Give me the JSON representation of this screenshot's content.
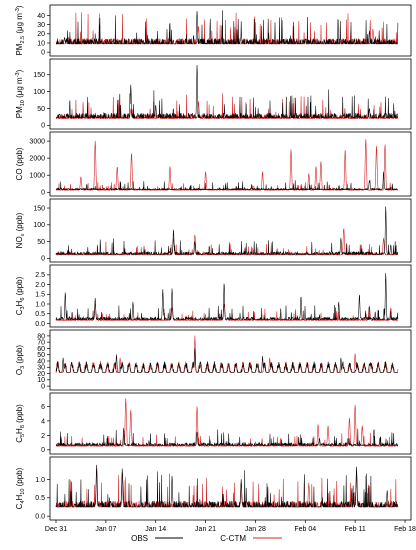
{
  "chart_data": {
    "type": "line",
    "x_axis": {
      "start": "2017-12-31",
      "end": "2018-02-18",
      "ticks": [
        "Dec 31",
        "Jan 07",
        "Jan 14",
        "Jan 21",
        "Jan 28",
        "Feb 04",
        "Feb 11",
        "Feb 18"
      ]
    },
    "series_names": [
      "OBS",
      "C-CTM"
    ],
    "colors": {
      "OBS": "#000000",
      "C-CTM": "#d62728"
    },
    "legend_position": "bottom-center",
    "panels": [
      {
        "id": "pm25",
        "ylabel": [
          "PM",
          "2.5",
          " (μg m",
          "-3",
          ")"
        ],
        "yticks": [
          0,
          10,
          20,
          30,
          40
        ],
        "ylim": [
          -2,
          47
        ],
        "obs_base": 9,
        "ctm_base": 9,
        "obs_peaks": [
          [
            1.2,
            16
          ],
          [
            19.8,
            45
          ],
          [
            26,
            19
          ],
          [
            35,
            13
          ],
          [
            44,
            23
          ]
        ],
        "ctm_peaks": [
          [
            1.5,
            15
          ],
          [
            20,
            28
          ],
          [
            44.5,
            25
          ]
        ]
      },
      {
        "id": "pm10",
        "ylabel": [
          "PM",
          "10",
          " (μg m",
          "-3",
          ")"
        ],
        "yticks": [
          0,
          50,
          100,
          150
        ],
        "ylim": [
          -5,
          185
        ],
        "obs_base": 22,
        "ctm_base": 20,
        "obs_peaks": [
          [
            10.5,
            120
          ],
          [
            19.8,
            180
          ],
          [
            14,
            60
          ],
          [
            44,
            50
          ]
        ],
        "ctm_peaks": [
          [
            20,
            70
          ],
          [
            10.5,
            45
          ]
        ]
      },
      {
        "id": "co",
        "ylabel": [
          "CO (ppb)"
        ],
        "yticks": [
          0,
          1000,
          2000,
          3000
        ],
        "ylim": [
          -100,
          3300
        ],
        "obs_base": 150,
        "ctm_base": 120,
        "obs_peaks": [
          [
            46,
            1200
          ],
          [
            44,
            700
          ]
        ],
        "ctm_peaks": [
          [
            3.5,
            900
          ],
          [
            5.5,
            3000
          ],
          [
            8.6,
            1500
          ],
          [
            10.6,
            2300
          ],
          [
            16,
            1500
          ],
          [
            21,
            1200
          ],
          [
            29,
            1200
          ],
          [
            33,
            2500
          ],
          [
            35.5,
            1100
          ],
          [
            36.5,
            1500
          ],
          [
            40.6,
            2500
          ],
          [
            43.5,
            3100
          ],
          [
            45,
            2700
          ],
          [
            46.2,
            2800
          ],
          [
            37.2,
            1800
          ]
        ]
      },
      {
        "id": "nox",
        "ylabel": [
          "NO",
          "x",
          " (ppb)"
        ],
        "yticks": [
          0,
          50,
          100,
          150
        ],
        "ylim": [
          -5,
          165
        ],
        "obs_base": 12,
        "ctm_base": 10,
        "obs_peaks": [
          [
            46.3,
            155
          ],
          [
            16.5,
            85
          ],
          [
            19.5,
            50
          ],
          [
            40,
            60
          ],
          [
            47,
            40
          ]
        ],
        "ctm_peaks": [
          [
            16.5,
            60
          ],
          [
            19.5,
            70
          ],
          [
            40.4,
            90
          ],
          [
            46,
            60
          ]
        ]
      },
      {
        "id": "c3h6",
        "ylabel": [
          "C",
          "3",
          "H",
          "6",
          " (ppb)"
        ],
        "yticks": [
          0.0,
          0.5,
          1.0,
          1.5,
          2.0,
          2.5
        ],
        "ylim": [
          -0.08,
          2.8
        ],
        "obs_base": 0.2,
        "ctm_base": 0.15,
        "obs_peaks": [
          [
            1.3,
            1.6
          ],
          [
            5.5,
            1.3
          ],
          [
            10.8,
            1.1
          ],
          [
            15,
            1.75
          ],
          [
            16.3,
            1.8
          ],
          [
            23.6,
            2.1
          ],
          [
            34.4,
            1.4
          ],
          [
            42.6,
            1.5
          ],
          [
            46.3,
            2.6
          ],
          [
            39.7,
            1.1
          ]
        ],
        "ctm_peaks": [
          [
            5.5,
            1.0
          ],
          [
            16.3,
            0.8
          ],
          [
            23.6,
            1.0
          ],
          [
            44,
            0.9
          ],
          [
            47,
            0.8
          ]
        ]
      },
      {
        "id": "o3",
        "ylabel": [
          "O",
          "3",
          " (ppb)"
        ],
        "yticks": [
          0,
          10,
          20,
          30,
          40,
          50,
          60,
          70,
          80
        ],
        "ylim": [
          -3,
          83
        ],
        "obs_base": 22,
        "ctm_base": 22,
        "obs_peaks": [
          [
            1,
            45
          ],
          [
            8.5,
            50
          ],
          [
            19.5,
            60
          ],
          [
            29,
            48
          ],
          [
            40,
            45
          ],
          [
            44,
            36
          ]
        ],
        "ctm_peaks": [
          [
            19.5,
            80
          ],
          [
            9,
            45
          ],
          [
            30,
            45
          ],
          [
            42,
            52
          ]
        ],
        "oscillating": true
      },
      {
        "id": "c5h8",
        "ylabel": [
          "C",
          "5",
          "H",
          "8",
          " (ppb)"
        ],
        "yticks": [
          0,
          2,
          4,
          6
        ],
        "ylim": [
          -0.3,
          7.3
        ],
        "obs_base": 0.6,
        "ctm_base": 0.5,
        "obs_peaks": [
          [
            9.5,
            3
          ],
          [
            19.8,
            2.5
          ],
          [
            37,
            1.6
          ],
          [
            41,
            1.6
          ]
        ],
        "ctm_peaks": [
          [
            9.8,
            7.1
          ],
          [
            10.5,
            5.5
          ],
          [
            19.8,
            6.0
          ],
          [
            36.8,
            3.5
          ],
          [
            38.2,
            3.3
          ],
          [
            41.2,
            4.4
          ],
          [
            42,
            6.2
          ],
          [
            43,
            3.3
          ]
        ]
      },
      {
        "id": "c4h10",
        "ylabel": [
          "C",
          "4",
          "H",
          "10",
          " (ppb)"
        ],
        "yticks": [
          0.0,
          0.5,
          1.0
        ],
        "ylim": [
          -0.05,
          1.5
        ],
        "obs_base": 0.25,
        "ctm_base": 0.25,
        "obs_peaks": [
          [
            5.7,
            1.4
          ],
          [
            9.3,
            1.3
          ],
          [
            16.3,
            1.1
          ],
          [
            26,
            1.0
          ],
          [
            42.2,
            1.35
          ],
          [
            46.5,
            0.7
          ]
        ],
        "ctm_peaks": [
          [
            5.7,
            1.3
          ],
          [
            9.3,
            1.2
          ],
          [
            26,
            0.9
          ],
          [
            42.2,
            1.2
          ],
          [
            35.5,
            0.9
          ]
        ]
      }
    ]
  }
}
